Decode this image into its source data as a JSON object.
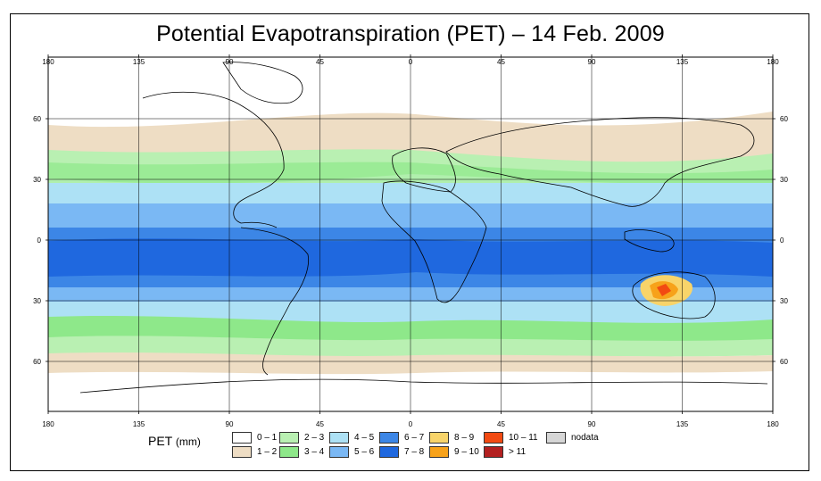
{
  "title": "Potential Evapotranspiration (PET) – 14 Feb. 2009",
  "axes": {
    "lon_labels": [
      "180",
      "135",
      "90",
      "45",
      "0",
      "45",
      "90",
      "135",
      "180"
    ],
    "lat_labels": [
      "60",
      "30",
      "0",
      "30",
      "60"
    ]
  },
  "legend": {
    "title": "PET",
    "unit": "(mm)",
    "items": [
      {
        "label": "0 – 1",
        "color": "#ffffff"
      },
      {
        "label": "1 – 2",
        "color": "#eeddc4"
      },
      {
        "label": "2 – 3",
        "color": "#b9f0b2"
      },
      {
        "label": "3 – 4",
        "color": "#8ee88a"
      },
      {
        "label": "4 – 5",
        "color": "#ade1f5"
      },
      {
        "label": "5 – 6",
        "color": "#7ab8f4"
      },
      {
        "label": "6 – 7",
        "color": "#3c86e6"
      },
      {
        "label": "7 – 8",
        "color": "#1f68df"
      },
      {
        "label": "8 – 9",
        "color": "#f8d46a"
      },
      {
        "label": "9 – 10",
        "color": "#f7a21a"
      },
      {
        "label": "10 – 11",
        "color": "#f24a12"
      },
      {
        "label": "> 11",
        "color": "#b32020"
      },
      {
        "label": "nodata",
        "color": "#d6d6d6"
      }
    ]
  }
}
